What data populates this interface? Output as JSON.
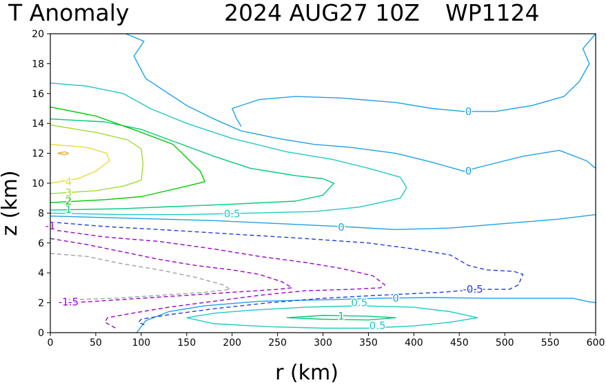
{
  "chart_data": {
    "type": "contour",
    "title": {
      "left": "T Anomaly",
      "date": "2024 AUG27 10Z",
      "storm": "WP1124"
    },
    "xlabel": "r (km)",
    "ylabel": "z (km)",
    "xlim": [
      0,
      600
    ],
    "ylim": [
      0,
      20
    ],
    "xticks": [
      0,
      50,
      100,
      150,
      200,
      250,
      300,
      350,
      400,
      450,
      500,
      550,
      600
    ],
    "yticks": [
      0,
      2,
      4,
      6,
      8,
      10,
      12,
      14,
      16,
      18,
      20
    ],
    "colors": {
      "neg1_5": "#9b00c8",
      "neg1": "#9b00c8",
      "neg0_5": "#1e3cdc",
      "gray": "#a0a0a0",
      "zero": "#1ea0e6",
      "pos0_5": "#1ec8c8",
      "pos1": "#00c878",
      "pos2": "#00c800",
      "pos3": "#a0dc32",
      "pos4": "#e6dc32",
      "pos5": "#e6af2d"
    },
    "contours": [
      {
        "level": 0,
        "style": "solid",
        "color_key": "zero",
        "points": [
          [
            83,
            20
          ],
          [
            103,
            19.5
          ],
          [
            92,
            18.5
          ],
          [
            105,
            17
          ],
          [
            130,
            16
          ],
          [
            150,
            15.2
          ],
          [
            180,
            14.3
          ],
          [
            210,
            13.5
          ],
          [
            250,
            13
          ],
          [
            290,
            12.6
          ],
          [
            330,
            12.4
          ],
          [
            380,
            12
          ],
          [
            420,
            11.4
          ],
          [
            455,
            10.8
          ],
          [
            480,
            11.2
          ],
          [
            520,
            11.8
          ],
          [
            560,
            12.2
          ],
          [
            590,
            11.5
          ],
          [
            600,
            11
          ]
        ]
      },
      {
        "level": 0,
        "style": "solid",
        "color_key": "zero",
        "points": [
          [
            600,
            20
          ],
          [
            586,
            19
          ],
          [
            593,
            18
          ],
          [
            582,
            16.8
          ],
          [
            565,
            15.8
          ],
          [
            530,
            15.2
          ],
          [
            490,
            14.8
          ],
          [
            455,
            14.8
          ],
          [
            420,
            15
          ],
          [
            380,
            15.4
          ],
          [
            320,
            15.7
          ],
          [
            270,
            15.8
          ],
          [
            230,
            15.6
          ],
          [
            200,
            15
          ],
          [
            205,
            14.3
          ],
          [
            210,
            13.8
          ]
        ]
      },
      {
        "level": 0,
        "style": "solid",
        "color_key": "zero",
        "points": [
          [
            0,
            7.8
          ],
          [
            60,
            7.7
          ],
          [
            120,
            7.6
          ],
          [
            180,
            7.5
          ],
          [
            250,
            7.3
          ],
          [
            320,
            7.1
          ],
          [
            380,
            6.9
          ],
          [
            440,
            7
          ],
          [
            500,
            7.3
          ],
          [
            560,
            7.6
          ],
          [
            600,
            7.9
          ]
        ]
      },
      {
        "level": 0,
        "style": "solid",
        "color_key": "zero",
        "points": [
          [
            95,
            0
          ],
          [
            105,
            0.8
          ],
          [
            130,
            1.4
          ],
          [
            170,
            1.8
          ],
          [
            230,
            2.1
          ],
          [
            300,
            2.2
          ],
          [
            360,
            2.3
          ],
          [
            420,
            2.35
          ],
          [
            480,
            2.3
          ],
          [
            540,
            2.3
          ],
          [
            575,
            2.3
          ],
          [
            590,
            2.1
          ],
          [
            600,
            2
          ]
        ]
      },
      {
        "level": 0.5,
        "style": "solid",
        "color_key": "pos0_5",
        "points": [
          [
            0,
            16.7
          ],
          [
            40,
            16.5
          ],
          [
            80,
            16
          ],
          [
            110,
            15
          ],
          [
            150,
            14
          ],
          [
            200,
            13
          ],
          [
            260,
            12.1
          ],
          [
            310,
            11.6
          ],
          [
            350,
            11
          ],
          [
            385,
            10.4
          ],
          [
            392,
            9.7
          ],
          [
            385,
            9
          ],
          [
            340,
            8.4
          ],
          [
            290,
            8.1
          ],
          [
            220,
            8
          ],
          [
            150,
            7.9
          ],
          [
            80,
            7.9
          ],
          [
            0,
            8
          ]
        ]
      },
      {
        "level": 0.5,
        "style": "solid",
        "color_key": "pos0_5",
        "points": [
          [
            150,
            1
          ],
          [
            180,
            0.6
          ],
          [
            240,
            0.4
          ],
          [
            300,
            0.3
          ],
          [
            350,
            0.3
          ],
          [
            400,
            0.45
          ],
          [
            440,
            0.7
          ],
          [
            470,
            1.0
          ],
          [
            440,
            1.4
          ],
          [
            400,
            1.7
          ],
          [
            340,
            1.8
          ],
          [
            280,
            1.7
          ],
          [
            220,
            1.5
          ],
          [
            180,
            1.3
          ],
          [
            150,
            1
          ]
        ]
      },
      {
        "level": 1,
        "style": "solid",
        "color_key": "pos1",
        "points": [
          [
            0,
            8.2
          ],
          [
            80,
            8.3
          ],
          [
            200,
            8.6
          ],
          [
            270,
            8.8
          ],
          [
            300,
            9.2
          ],
          [
            312,
            10
          ],
          [
            300,
            10.3
          ],
          [
            270,
            10.5
          ],
          [
            220,
            11
          ],
          [
            180,
            11.8
          ],
          [
            140,
            12.7
          ],
          [
            100,
            13.6
          ],
          [
            60,
            14.1
          ],
          [
            0,
            14.3
          ]
        ]
      },
      {
        "level": 1,
        "style": "solid",
        "color_key": "pos1",
        "points": [
          [
            260,
            1
          ],
          [
            300,
            0.9
          ],
          [
            350,
            0.85
          ],
          [
            380,
            1
          ],
          [
            350,
            1.1
          ],
          [
            300,
            1.15
          ],
          [
            260,
            1
          ]
        ]
      },
      {
        "level": 2,
        "style": "solid",
        "color_key": "pos2",
        "points": [
          [
            0,
            15.1
          ],
          [
            50,
            14.5
          ],
          [
            100,
            13.4
          ],
          [
            135,
            12.6
          ],
          [
            150,
            11.7
          ],
          [
            165,
            10.8
          ],
          [
            170,
            10.1
          ],
          [
            150,
            9.8
          ],
          [
            100,
            9.1
          ],
          [
            60,
            8.9
          ],
          [
            0,
            8.7
          ]
        ]
      },
      {
        "level": 3,
        "style": "solid",
        "color_key": "pos3",
        "points": [
          [
            0,
            13.9
          ],
          [
            50,
            13.4
          ],
          [
            85,
            12.9
          ],
          [
            100,
            12.3
          ],
          [
            102,
            11.3
          ],
          [
            100,
            10.2
          ],
          [
            80,
            9.8
          ],
          [
            50,
            9.5
          ],
          [
            0,
            9.3
          ]
        ]
      },
      {
        "level": 4,
        "style": "solid",
        "color_key": "pos4",
        "points": [
          [
            0,
            12.6
          ],
          [
            40,
            12.4
          ],
          [
            62,
            12
          ],
          [
            65,
            11.5
          ],
          [
            50,
            10.8
          ],
          [
            30,
            10.3
          ],
          [
            0,
            10
          ]
        ]
      },
      {
        "level": 5,
        "style": "solid",
        "color_key": "pos5",
        "points": [
          [
            8,
            12
          ],
          [
            16,
            12.1
          ],
          [
            20,
            12
          ],
          [
            16,
            11.9
          ],
          [
            8,
            12
          ]
        ]
      },
      {
        "level": -0.5,
        "style": "dashed",
        "color_key": "neg0_5",
        "points": [
          [
            0,
            7.4
          ],
          [
            60,
            7.1
          ],
          [
            120,
            6.9
          ],
          [
            200,
            6.6
          ],
          [
            280,
            6.3
          ],
          [
            350,
            6
          ],
          [
            400,
            5.6
          ],
          [
            440,
            5.2
          ],
          [
            460,
            4.5
          ],
          [
            480,
            4.2
          ],
          [
            510,
            4.1
          ],
          [
            520,
            3.9
          ],
          [
            515,
            3.2
          ],
          [
            505,
            2.9
          ],
          [
            470,
            2.9
          ],
          [
            430,
            2.7
          ],
          [
            360,
            2.5
          ],
          [
            300,
            2.3
          ],
          [
            240,
            2.0
          ],
          [
            180,
            1.6
          ],
          [
            130,
            1.2
          ],
          [
            100,
            0.9
          ],
          [
            97,
            0.7
          ],
          [
            104,
            0.5
          ]
        ]
      },
      {
        "level": -1,
        "style": "dashed",
        "color_key": "neg1",
        "points": [
          [
            0,
            6.9
          ],
          [
            60,
            6.4
          ],
          [
            120,
            6.1
          ],
          [
            180,
            5.6
          ],
          [
            230,
            5.1
          ],
          [
            280,
            4.7
          ],
          [
            320,
            4.3
          ],
          [
            355,
            3.8
          ],
          [
            368,
            3.2
          ],
          [
            363,
            3.0
          ],
          [
            330,
            2.9
          ],
          [
            280,
            2.8
          ],
          [
            230,
            2.5
          ],
          [
            180,
            2.1
          ],
          [
            130,
            1.7
          ],
          [
            90,
            1.3
          ],
          [
            63,
            1.0
          ],
          [
            60,
            0.7
          ],
          [
            72,
            0.3
          ]
        ]
      },
      {
        "level": -1.5,
        "style": "dashed",
        "color_key": "neg1_5",
        "points": [
          [
            0,
            6.3
          ],
          [
            40,
            5.9
          ],
          [
            80,
            5.4
          ],
          [
            120,
            4.9
          ],
          [
            160,
            4.5
          ],
          [
            200,
            4.2
          ],
          [
            230,
            3.9
          ],
          [
            255,
            3.4
          ],
          [
            266,
            3.0
          ],
          [
            250,
            2.9
          ],
          [
            200,
            2.7
          ],
          [
            150,
            2.5
          ],
          [
            100,
            2.3
          ],
          [
            50,
            2.1
          ],
          [
            20,
            2.0
          ]
        ]
      },
      {
        "level": -2,
        "style": "dashed",
        "color_key": "gray",
        "points": [
          [
            0,
            5.3
          ],
          [
            40,
            5.1
          ],
          [
            80,
            4.6
          ],
          [
            120,
            4.2
          ],
          [
            160,
            3.7
          ],
          [
            190,
            3.2
          ],
          [
            198,
            2.9
          ],
          [
            170,
            2.7
          ],
          [
            120,
            2.5
          ],
          [
            70,
            2.3
          ],
          [
            20,
            2.2
          ]
        ]
      }
    ],
    "labels": [
      {
        "text": "0",
        "r": 460,
        "z": 14.8,
        "color_key": "zero"
      },
      {
        "text": "0",
        "r": 460,
        "z": 10.8,
        "color_key": "zero"
      },
      {
        "text": "0",
        "r": 320,
        "z": 7.05,
        "color_key": "zero"
      },
      {
        "text": "0",
        "r": 380,
        "z": 2.3,
        "color_key": "zero"
      },
      {
        "text": "0.5",
        "r": 200,
        "z": 7.95,
        "color_key": "pos0_5"
      },
      {
        "text": "0.5",
        "r": 340,
        "z": 2.0,
        "color_key": "pos0_5"
      },
      {
        "text": "0.5",
        "r": 360,
        "z": 0.45,
        "color_key": "pos0_5"
      },
      {
        "text": "1",
        "r": 320,
        "z": 1.1,
        "color_key": "pos1"
      },
      {
        "text": "1",
        "r": 20,
        "z": 8.25,
        "color_key": "pos1"
      },
      {
        "text": "2",
        "r": 20,
        "z": 8.8,
        "color_key": "pos2"
      },
      {
        "text": "3",
        "r": 20,
        "z": 9.35,
        "color_key": "pos3"
      },
      {
        "text": "4",
        "r": 20,
        "z": 10.1,
        "color_key": "pos4"
      },
      {
        "text": "-0.5",
        "r": 465,
        "z": 2.9,
        "color_key": "neg0_5"
      },
      {
        "text": "-1",
        "r": 0,
        "z": 7.15,
        "color_key": "neg1"
      },
      {
        "text": "-1.5",
        "r": 20,
        "z": 2.05,
        "color_key": "neg1_5"
      }
    ]
  }
}
